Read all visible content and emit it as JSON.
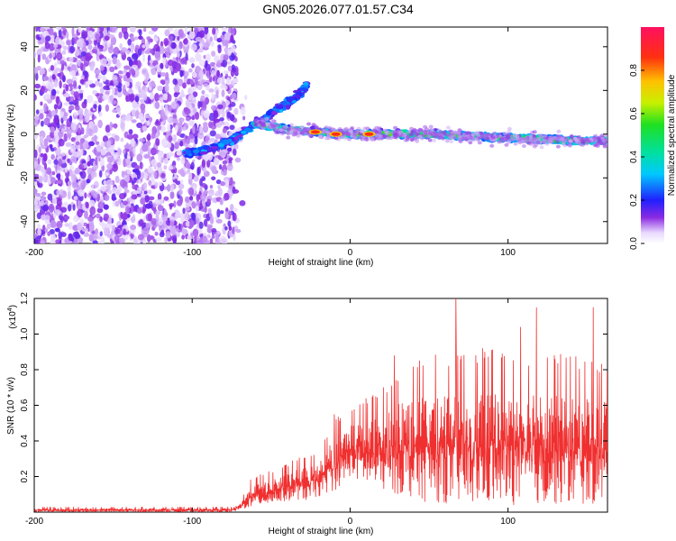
{
  "title": "GN05.2026.077.01.57.C34",
  "chart_data": [
    {
      "type": "heatmap",
      "title": "GN05.2026.077.01.57.C34",
      "xlabel": "Height of straight line (km)",
      "ylabel": "Frequency (Hz)",
      "xlim": [
        -200,
        163
      ],
      "ylim": [
        -50,
        49
      ],
      "x_ticks": [
        -200,
        -100,
        0,
        100
      ],
      "y_ticks": [
        -40,
        -20,
        0,
        20,
        40
      ],
      "colorbar": {
        "label": "Normalized spectral amplitude",
        "range": [
          0,
          1
        ],
        "ticks": [
          "0.0",
          "0.2",
          "0.4",
          "0.6",
          "0.8"
        ],
        "tick_values": [
          0.0,
          0.2,
          0.4,
          0.6,
          0.8
        ]
      },
      "features": [
        {
          "name": "noise-region",
          "x_range": [
            -200,
            -72
          ],
          "freq_range": [
            -50,
            49
          ],
          "amplitude": 0.15
        },
        {
          "name": "rising-branch",
          "x": [
            -105,
            -90,
            -75,
            -62,
            -52
          ],
          "freq": [
            -9,
            -7,
            -3,
            4,
            8
          ],
          "amplitude": 0.3
        },
        {
          "name": "upper-branch",
          "x": [
            -52,
            -45,
            -38,
            -31,
            -27
          ],
          "freq": [
            8,
            12,
            15,
            19,
            23
          ],
          "amplitude": 0.3
        },
        {
          "name": "main-trace",
          "x": [
            -60,
            -40,
            -20,
            0,
            20,
            50,
            80,
            110,
            140,
            163
          ],
          "freq": [
            5,
            2,
            1,
            0,
            0,
            0,
            -1,
            -2,
            -3,
            -3
          ],
          "amplitude": 0.5
        },
        {
          "name": "peak-spots",
          "x": [
            -22,
            -9,
            12
          ],
          "freq": [
            1,
            0,
            0
          ],
          "amplitude": 1.0
        }
      ]
    },
    {
      "type": "line",
      "xlabel": "Height of straight line (km)",
      "ylabel": "SNR (10 * v/v)",
      "multiplier": "(x10",
      "multiplier_exp": "4",
      "xlim": [
        -200,
        163
      ],
      "ylim": [
        0,
        1.2
      ],
      "x_ticks": [
        -200,
        -100,
        0,
        100
      ],
      "y_ticks": [
        0.2,
        0.4,
        0.6,
        0.8,
        1.0,
        1.2
      ],
      "y_tick_labels": [
        "0.2",
        "0.4",
        "0.6",
        "0.8",
        "1.0",
        "1.2"
      ],
      "color": "#f03030",
      "envelope": {
        "x": [
          -200,
          -75,
          -70,
          -62,
          -55,
          -45,
          -35,
          -25,
          -17,
          -10,
          -5,
          0,
          10,
          20,
          30,
          40,
          50,
          60,
          70,
          80,
          90,
          100,
          110,
          120,
          130,
          140,
          150,
          163
        ],
        "low": [
          0.0,
          0.0,
          0.01,
          0.03,
          0.04,
          0.05,
          0.07,
          0.06,
          0.1,
          0.12,
          0.15,
          0.2,
          0.15,
          0.12,
          0.1,
          0.08,
          0.05,
          0.05,
          0.04,
          0.04,
          0.04,
          0.04,
          0.04,
          0.04,
          0.04,
          0.04,
          0.04,
          0.04
        ],
        "high": [
          0.03,
          0.03,
          0.06,
          0.2,
          0.22,
          0.25,
          0.3,
          0.33,
          0.4,
          0.55,
          0.55,
          0.6,
          0.65,
          0.7,
          0.8,
          0.85,
          0.88,
          0.9,
          0.92,
          0.92,
          0.92,
          0.92,
          0.9,
          0.92,
          0.9,
          0.88,
          0.88,
          0.86
        ]
      },
      "peaks": [
        {
          "x": -10,
          "y": 0.55
        },
        {
          "x": 28,
          "y": 0.88
        },
        {
          "x": 67,
          "y": 1.21
        },
        {
          "x": 108,
          "y": 1.04
        },
        {
          "x": 118,
          "y": 1.15
        },
        {
          "x": 154,
          "y": 1.15
        }
      ]
    }
  ]
}
